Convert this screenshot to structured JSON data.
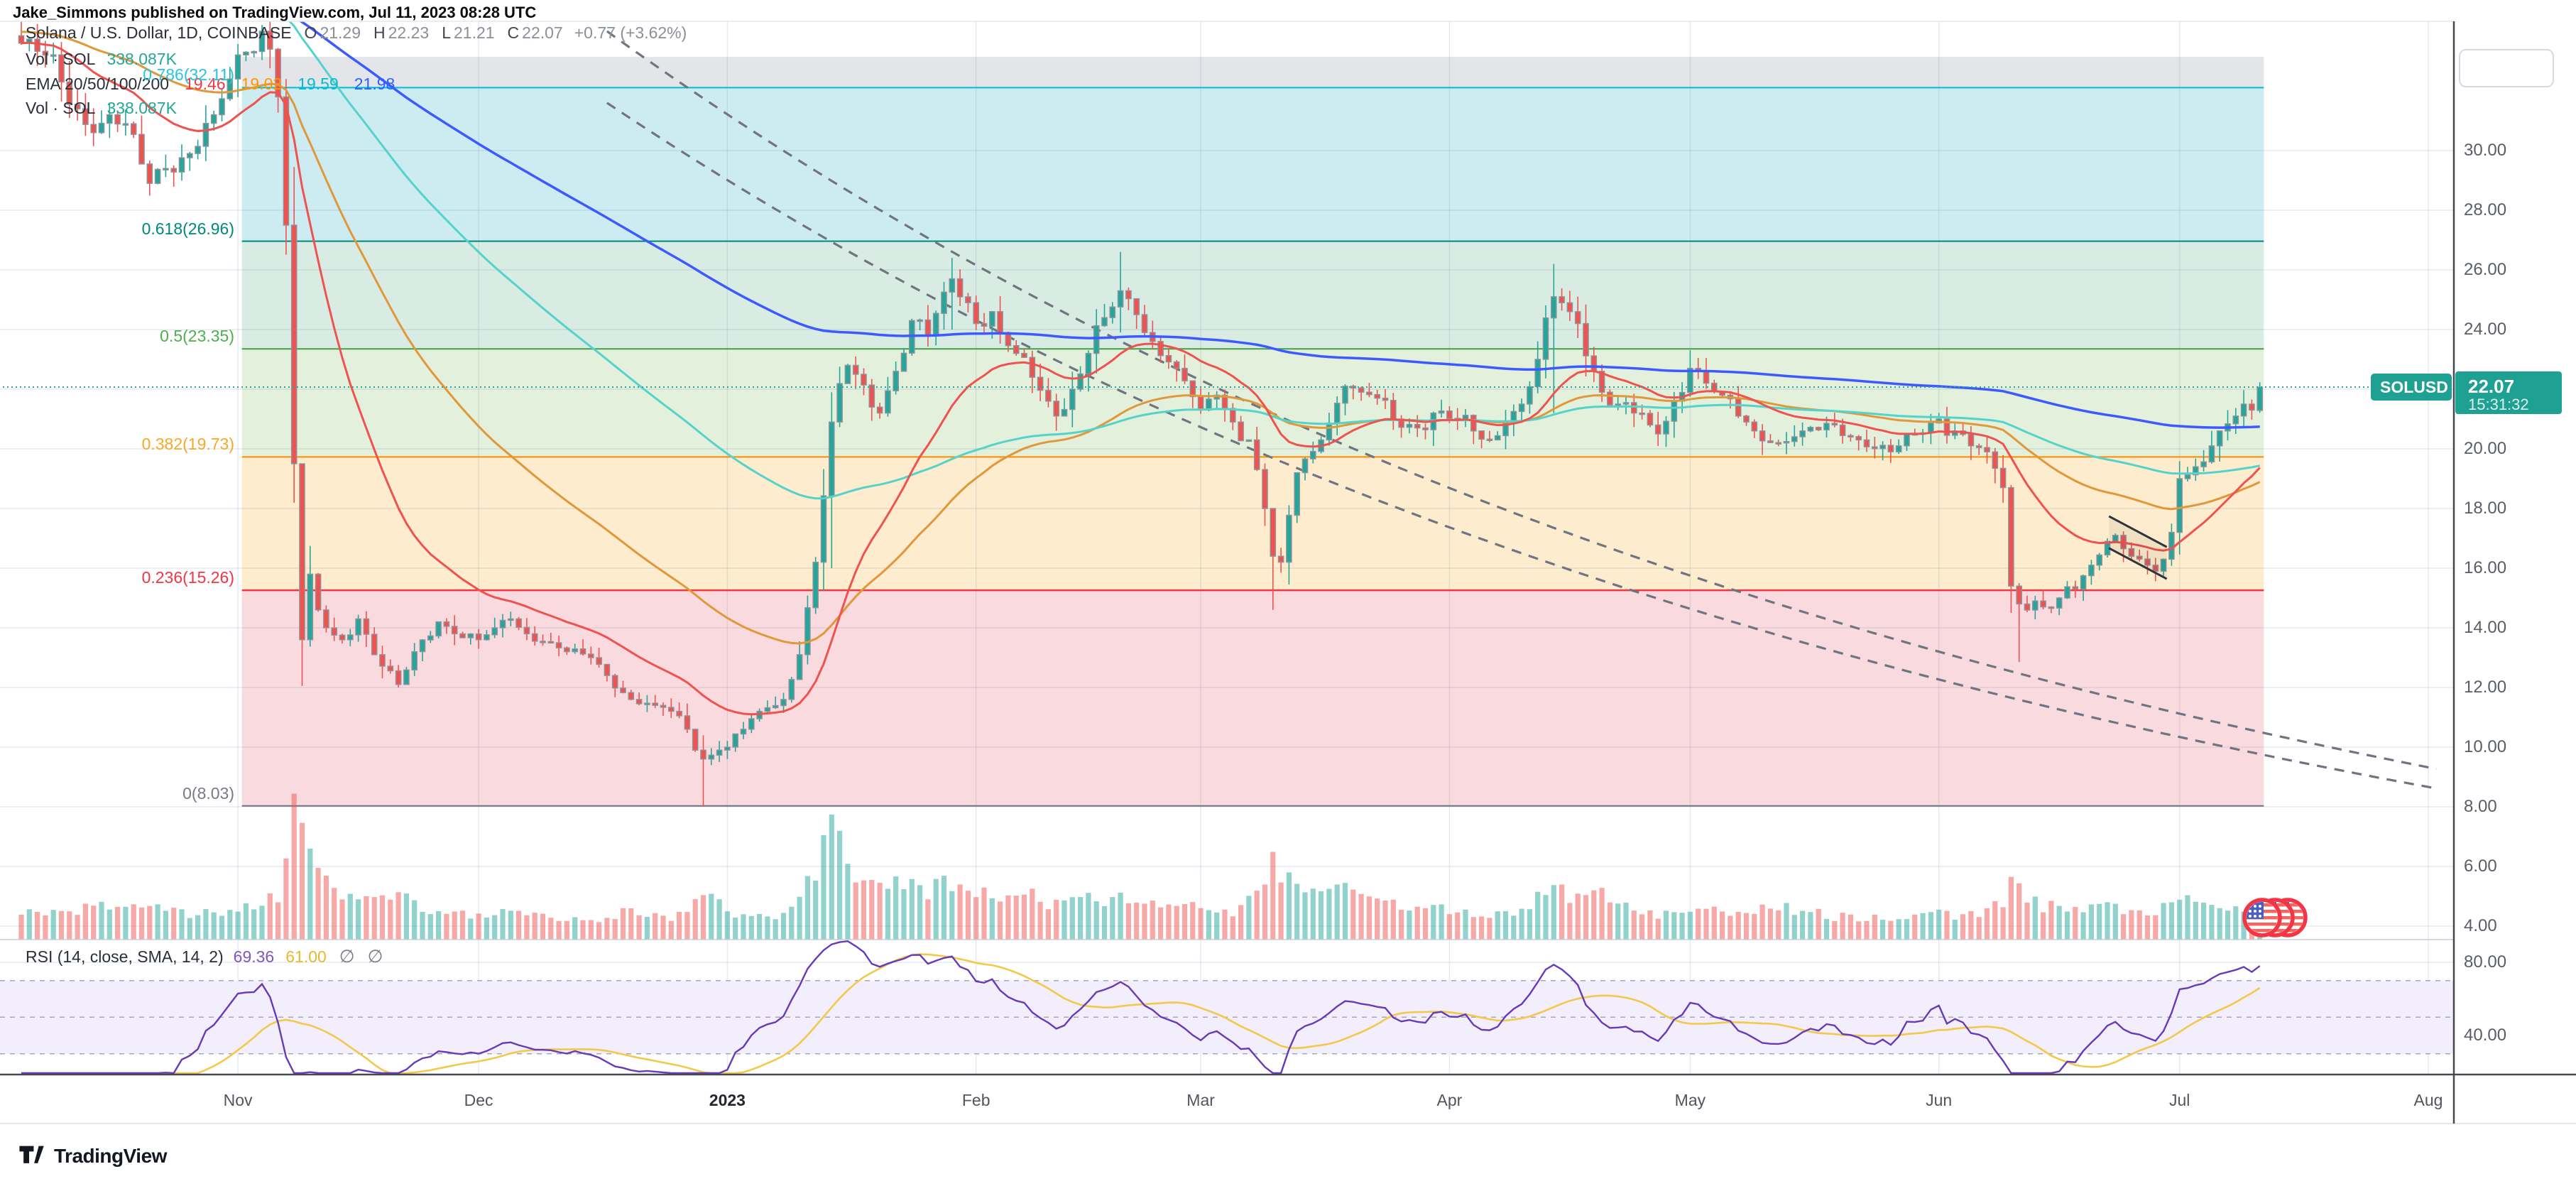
{
  "attribution": "Jake_Simmons published on TradingView.com, Jul 11, 2023 08:28 UTC",
  "header": {
    "title": "Solana / U.S. Dollar, 1D, COINBASE",
    "ohlc": [
      {
        "k": "O",
        "v": "21.29"
      },
      {
        "k": "H",
        "v": "22.23"
      },
      {
        "k": "L",
        "v": "21.21"
      },
      {
        "k": "C",
        "v": "22.07"
      }
    ],
    "change": "+0.77 (+3.62%)"
  },
  "legend": {
    "vol_label": "Vol · SOL",
    "vol_value": "338.087K",
    "vol_label2": "Vol · SOL",
    "vol_value2": "338.087K",
    "ema_label": "EMA 20/50/100/200",
    "ema_values": [
      {
        "text": "19.46",
        "color": "#f23645"
      },
      {
        "text": "19.02",
        "color": "#ff9800"
      },
      {
        "text": "19.59",
        "color": "#00bcd4"
      },
      {
        "text": "21.98",
        "color": "#2962ff"
      }
    ]
  },
  "price_tag": {
    "symbol": "SOLUSD",
    "price": "22.07",
    "countdown": "15:31:32",
    "value": 22.07,
    "color": "#1ea093"
  },
  "price_axis_ticks": [
    "30.00",
    "28.00",
    "26.00",
    "24.00",
    "20.00",
    "18.00",
    "16.00",
    "14.00",
    "12.00",
    "10.00",
    "8.00",
    "6.00",
    "4.00"
  ],
  "price_axis_tick_values": [
    30,
    28,
    26,
    24,
    20,
    18,
    16,
    14,
    12,
    10,
    8,
    6,
    4
  ],
  "rsi_axis_ticks": [
    {
      "text": "80.00",
      "value": 80
    },
    {
      "text": "40.00",
      "value": 40
    }
  ],
  "rsi_legend": {
    "label": "RSI (14, close, SMA, 14, 2)",
    "value": "69.36",
    "sma_value": "61.00",
    "empty1": "∅",
    "empty2": "∅"
  },
  "footer": {
    "brand": "TradingView"
  },
  "watermark_icon": "us-flag-coins-icon",
  "chart_data": {
    "type": "candlestick",
    "symbol": "SOLUSD",
    "name": "Solana / U.S. Dollar",
    "exchange": "COINBASE",
    "interval": "1D",
    "start_date": "2022-10-05",
    "end_date": "2023-07-11",
    "last_candle": {
      "o": 21.29,
      "h": 22.23,
      "l": 21.21,
      "c": 22.07,
      "change": "+0.77 (+3.62%)"
    },
    "current_price": 22.07,
    "price_axis_range": [
      3.0,
      34.3
    ],
    "months": [
      {
        "label": "Nov",
        "day": 27,
        "bold": false
      },
      {
        "label": "Dec",
        "day": 57,
        "bold": false
      },
      {
        "label": "2023",
        "day": 88,
        "bold": true
      },
      {
        "label": "Feb",
        "day": 119,
        "bold": false
      },
      {
        "label": "Mar",
        "day": 147,
        "bold": false
      },
      {
        "label": "Apr",
        "day": 178,
        "bold": false
      },
      {
        "label": "May",
        "day": 208,
        "bold": false
      },
      {
        "label": "Jun",
        "day": 239,
        "bold": false
      },
      {
        "label": "Jul",
        "day": 269,
        "bold": false
      },
      {
        "label": "Aug",
        "day": 300,
        "bold": false
      }
    ],
    "fib_levels": [
      {
        "label": "0.786(32.11)",
        "ratio": 0.786,
        "price": 32.11,
        "line_color": "#00bcd4",
        "label_color": "#26c6da"
      },
      {
        "label": "0.618(26.96)",
        "ratio": 0.618,
        "price": 26.96,
        "line_color": "#00897b",
        "label_color": "#00897b"
      },
      {
        "label": "0.5(23.35)",
        "ratio": 0.5,
        "price": 23.35,
        "line_color": "#43a047",
        "label_color": "#4caf50"
      },
      {
        "label": "0.382(19.73)",
        "ratio": 0.382,
        "price": 19.73,
        "line_color": "#fb8c00",
        "label_color": "#f9a825"
      },
      {
        "label": "0.236(15.26)",
        "ratio": 0.236,
        "price": 15.26,
        "line_color": "#f23645",
        "label_color": "#f23645"
      },
      {
        "label": "0(8.03)",
        "ratio": 0,
        "price": 8.03,
        "line_color": "#6f737e",
        "label_color": "#787b86"
      }
    ],
    "fib_zones": [
      {
        "from": 33.14,
        "to": 32.11,
        "color": "#e4e5e9"
      },
      {
        "from": 32.11,
        "to": 26.96,
        "color": "#cdecf2"
      },
      {
        "from": 26.96,
        "to": 23.35,
        "color": "#d8ece4"
      },
      {
        "from": 23.35,
        "to": 19.73,
        "color": "#e3f1dc"
      },
      {
        "from": 19.73,
        "to": 15.26,
        "color": "#fdeccd"
      },
      {
        "from": 15.26,
        "to": 8.03,
        "color": "#f9dade"
      }
    ],
    "fib_span_days": [
      27.5,
      279.5
    ],
    "emas": [
      {
        "period": 20,
        "color": "#ef5350",
        "init": 33.6,
        "last": 19.46
      },
      {
        "period": 50,
        "color": "#e0983a",
        "init": 34.0,
        "last": 19.02
      },
      {
        "period": 100,
        "color": "#55d3cb",
        "init": 37.5,
        "last": 19.59
      },
      {
        "period": 200,
        "color": "#3d5afe",
        "init": 36.0,
        "last": 21.98
      }
    ],
    "rsi": {
      "period": 14,
      "sma_period": 14,
      "last": 69.36,
      "sma_last": 61.0,
      "levels": [
        70,
        50,
        30
      ],
      "color": "#673ab7",
      "sma_color": "#f2c94c"
    },
    "trendlines": [
      {
        "from_day": 73,
        "from_price": 34.0,
        "decay_per_day": 0.0057,
        "to_day": 301
      },
      {
        "from_day": 73,
        "from_price": 31.6,
        "decay_per_day": 0.0057,
        "to_day": 301
      }
    ],
    "flag_channel": {
      "days": [
        260.2,
        267.4
      ],
      "upper_prices": [
        17.74,
        16.71
      ],
      "lower_prices": [
        16.67,
        15.64
      ]
    },
    "price_anchors": [
      [
        0,
        33.6
      ],
      [
        3,
        33.2
      ],
      [
        5,
        32.3
      ],
      [
        7,
        31.4
      ],
      [
        9,
        30.6
      ],
      [
        11,
        31.2
      ],
      [
        13,
        30.9
      ],
      [
        16,
        28.9
      ],
      [
        18,
        29.4
      ],
      [
        21,
        29.9
      ],
      [
        24,
        31.2
      ],
      [
        26,
        32.4
      ],
      [
        28,
        33.3
      ],
      [
        30,
        34.0
      ],
      [
        31,
        33.4
      ],
      [
        32,
        31.8
      ],
      [
        33,
        27.5
      ],
      [
        34,
        19.5
      ],
      [
        35,
        13.6
      ],
      [
        36,
        15.8
      ],
      [
        37,
        14.6
      ],
      [
        38,
        14.0
      ],
      [
        40,
        13.6
      ],
      [
        42,
        14.3
      ],
      [
        44,
        13.1
      ],
      [
        47,
        12.1
      ],
      [
        49,
        13.2
      ],
      [
        52,
        14.2
      ],
      [
        54,
        13.8
      ],
      [
        57,
        13.6
      ],
      [
        59,
        14.0
      ],
      [
        61,
        14.3
      ],
      [
        63,
        13.8
      ],
      [
        66,
        13.5
      ],
      [
        68,
        13.2
      ],
      [
        71,
        13.0
      ],
      [
        73,
        12.4
      ],
      [
        76,
        11.6
      ],
      [
        79,
        11.4
      ],
      [
        81,
        11.2
      ],
      [
        83,
        10.6
      ],
      [
        84,
        9.9
      ],
      [
        85,
        9.6
      ],
      [
        87,
        9.9
      ],
      [
        88,
        10.0
      ],
      [
        90,
        10.6
      ],
      [
        92,
        11.2
      ],
      [
        95,
        11.6
      ],
      [
        97,
        13.1
      ],
      [
        99,
        16.2
      ],
      [
        101,
        20.9
      ],
      [
        103,
        22.8
      ],
      [
        104,
        22.5
      ],
      [
        106,
        21.4
      ],
      [
        107,
        21.2
      ],
      [
        109,
        22.6
      ],
      [
        111,
        24.3
      ],
      [
        113,
        23.8
      ],
      [
        116,
        25.7
      ],
      [
        118,
        24.9
      ],
      [
        119,
        24.2
      ],
      [
        121,
        24.6
      ],
      [
        122,
        23.9
      ],
      [
        124,
        23.2
      ],
      [
        126,
        22.4
      ],
      [
        129,
        21.1
      ],
      [
        131,
        22.0
      ],
      [
        133,
        23.2
      ],
      [
        135,
        24.4
      ],
      [
        137,
        25.3
      ],
      [
        139,
        24.5
      ],
      [
        141,
        23.6
      ],
      [
        144,
        22.7
      ],
      [
        147,
        21.3
      ],
      [
        149,
        21.8
      ],
      [
        151,
        20.9
      ],
      [
        153,
        20.3
      ],
      [
        155,
        18.0
      ],
      [
        156,
        16.4
      ],
      [
        157,
        16.2
      ],
      [
        159,
        19.2
      ],
      [
        162,
        20.3
      ],
      [
        165,
        22.1
      ],
      [
        167,
        21.9
      ],
      [
        169,
        21.7
      ],
      [
        171,
        21.0
      ],
      [
        174,
        20.7
      ],
      [
        176,
        21.2
      ],
      [
        179,
        21.0
      ],
      [
        181,
        20.6
      ],
      [
        183,
        20.3
      ],
      [
        185,
        20.9
      ],
      [
        187,
        21.5
      ],
      [
        189,
        23.0
      ],
      [
        191,
        25.1
      ],
      [
        193,
        24.6
      ],
      [
        194,
        24.2
      ],
      [
        196,
        22.6
      ],
      [
        197,
        21.9
      ],
      [
        199,
        21.5
      ],
      [
        201,
        21.2
      ],
      [
        203,
        20.8
      ],
      [
        204,
        20.5
      ],
      [
        206,
        21.6
      ],
      [
        208,
        22.7
      ],
      [
        210,
        22.2
      ],
      [
        212,
        21.8
      ],
      [
        214,
        21.1
      ],
      [
        216,
        20.6
      ],
      [
        219,
        20.2
      ],
      [
        222,
        20.6
      ],
      [
        226,
        20.8
      ],
      [
        229,
        20.3
      ],
      [
        233,
        19.9
      ],
      [
        236,
        20.5
      ],
      [
        239,
        21.0
      ],
      [
        241,
        20.6
      ],
      [
        243,
        20.1
      ],
      [
        245,
        19.9
      ],
      [
        247,
        18.7
      ],
      [
        248,
        15.4
      ],
      [
        249,
        14.8
      ],
      [
        251,
        14.9
      ],
      [
        252,
        14.7
      ],
      [
        254,
        15.0
      ],
      [
        256,
        15.3
      ],
      [
        258,
        16.1
      ],
      [
        260,
        16.9
      ],
      [
        261,
        17.1
      ],
      [
        263,
        16.4
      ],
      [
        265,
        16.1
      ],
      [
        266,
        15.9
      ],
      [
        267,
        16.3
      ],
      [
        268,
        17.2
      ],
      [
        269,
        19.0
      ],
      [
        271,
        19.4
      ],
      [
        273,
        20.1
      ],
      [
        274,
        20.6
      ],
      [
        276,
        21.1
      ],
      [
        277,
        21.5
      ],
      [
        278,
        21.3
      ],
      [
        279,
        22.07
      ]
    ],
    "wick_overrides": {
      "35": [
        17.8,
        12.05
      ],
      "85": [
        10.4,
        8.0
      ],
      "101": [
        21.9,
        16.0
      ],
      "116": [
        26.4,
        24.0
      ],
      "137": [
        26.6,
        23.9
      ],
      "156": [
        17.2,
        14.6
      ],
      "191": [
        26.2,
        21.2
      ],
      "249": [
        15.5,
        12.85
      ]
    },
    "volume_anchors": [
      [
        0,
        0.22
      ],
      [
        5,
        0.19
      ],
      [
        9,
        0.26
      ],
      [
        16,
        0.29
      ],
      [
        21,
        0.19
      ],
      [
        26,
        0.22
      ],
      [
        30,
        0.31
      ],
      [
        32,
        0.35
      ],
      [
        33,
        0.76
      ],
      [
        34,
        0.97
      ],
      [
        35,
        1.0
      ],
      [
        36,
        0.84
      ],
      [
        37,
        0.61
      ],
      [
        38,
        0.47
      ],
      [
        40,
        0.35
      ],
      [
        42,
        0.28
      ],
      [
        47,
        0.38
      ],
      [
        50,
        0.25
      ],
      [
        52,
        0.21
      ],
      [
        57,
        0.19
      ],
      [
        61,
        0.22
      ],
      [
        66,
        0.17
      ],
      [
        71,
        0.16
      ],
      [
        76,
        0.22
      ],
      [
        81,
        0.17
      ],
      [
        84,
        0.31
      ],
      [
        85,
        0.42
      ],
      [
        86,
        0.35
      ],
      [
        88,
        0.19
      ],
      [
        92,
        0.17
      ],
      [
        95,
        0.2
      ],
      [
        97,
        0.31
      ],
      [
        99,
        0.54
      ],
      [
        100,
        0.73
      ],
      [
        101,
        1.0
      ],
      [
        102,
        0.79
      ],
      [
        103,
        0.66
      ],
      [
        104,
        0.51
      ],
      [
        107,
        0.42
      ],
      [
        111,
        0.48
      ],
      [
        113,
        0.38
      ],
      [
        116,
        0.45
      ],
      [
        119,
        0.37
      ],
      [
        122,
        0.31
      ],
      [
        126,
        0.36
      ],
      [
        129,
        0.27
      ],
      [
        133,
        0.39
      ],
      [
        135,
        0.31
      ],
      [
        137,
        0.34
      ],
      [
        139,
        0.29
      ],
      [
        144,
        0.26
      ],
      [
        147,
        0.25
      ],
      [
        151,
        0.22
      ],
      [
        155,
        0.4
      ],
      [
        156,
        0.61
      ],
      [
        157,
        0.54
      ],
      [
        158,
        0.48
      ],
      [
        159,
        0.45
      ],
      [
        162,
        0.37
      ],
      [
        165,
        0.42
      ],
      [
        169,
        0.29
      ],
      [
        174,
        0.25
      ],
      [
        179,
        0.22
      ],
      [
        183,
        0.2
      ],
      [
        187,
        0.24
      ],
      [
        191,
        0.4
      ],
      [
        193,
        0.34
      ],
      [
        194,
        0.31
      ],
      [
        197,
        0.35
      ],
      [
        201,
        0.22
      ],
      [
        204,
        0.2
      ],
      [
        208,
        0.26
      ],
      [
        212,
        0.21
      ],
      [
        219,
        0.27
      ],
      [
        226,
        0.18
      ],
      [
        233,
        0.17
      ],
      [
        239,
        0.2
      ],
      [
        243,
        0.19
      ],
      [
        247,
        0.28
      ],
      [
        248,
        0.52
      ],
      [
        249,
        0.45
      ],
      [
        250,
        0.34
      ],
      [
        252,
        0.27
      ],
      [
        256,
        0.22
      ],
      [
        260,
        0.27
      ],
      [
        263,
        0.21
      ],
      [
        266,
        0.2
      ],
      [
        268,
        0.34
      ],
      [
        269,
        0.37
      ],
      [
        271,
        0.27
      ],
      [
        274,
        0.25
      ],
      [
        277,
        0.22
      ],
      [
        278,
        0.2
      ],
      [
        279,
        0.26
      ]
    ],
    "last_volume_label": "338.087K",
    "colors": {
      "up": "#26a69a",
      "down": "#ef5350",
      "body_stroke": "#8f939c",
      "vol_up": "rgba(38,166,154,0.5)",
      "vol_down": "rgba(239,83,80,0.5)",
      "grid": "rgba(98,125,170,0.16)",
      "trend_dash": "#6f7480",
      "dotted_price": "#26a69a",
      "rsi_band": "#f3eefb",
      "rsi_dash": "#a6a9b3",
      "pane_border_dark": "#454851",
      "pane_border_light": "#c9cdd7"
    }
  }
}
